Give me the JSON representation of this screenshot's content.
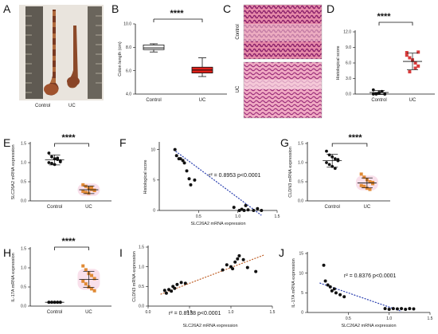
{
  "figure": {
    "panels": {
      "A": {
        "letter": "A",
        "labels": [
          "Control",
          "UC"
        ]
      },
      "B": {
        "letter": "B",
        "significance": "****",
        "chart_data": {
          "type": "box",
          "categories": [
            "Control",
            "UC"
          ],
          "ylabel": "Colon length (cm)",
          "yticks": [
            "4.0",
            "6.0",
            "8.0",
            "10.0"
          ],
          "ylim": [
            4,
            10
          ],
          "boxes": [
            {
              "name": "Control",
              "min": 7.6,
              "q1": 7.8,
              "median": 7.95,
              "q3": 8.2,
              "max": 8.3,
              "color": "#ffffff"
            },
            {
              "name": "UC",
              "min": 5.5,
              "q1": 5.8,
              "median": 6.05,
              "q3": 6.3,
              "max": 7.1,
              "color": "#e0201a"
            }
          ]
        }
      },
      "C": {
        "letter": "C",
        "row_labels": [
          "Control",
          "UC"
        ]
      },
      "D": {
        "letter": "D",
        "significance": "****",
        "chart_data": {
          "type": "dot",
          "categories": [
            "Control",
            "UC"
          ],
          "ylabel": "Histological score",
          "yticks": [
            "0.0",
            "3.0",
            "6.0",
            "9.0",
            "12.0"
          ],
          "ylim": [
            0,
            12
          ],
          "groups": [
            {
              "name": "Control",
              "color": "#111111",
              "mean": 0.3,
              "sd": 0.4,
              "values": [
                0.0,
                0.0,
                0.2,
                0.5,
                0.0,
                0.8,
                0.1,
                0.3,
                0.5,
                0.0
              ]
            },
            {
              "name": "UC",
              "color": "#d83c3c",
              "mean": 6.3,
              "sd": 1.6,
              "values": [
                8.0,
                7.0,
                6.6,
                6.0,
                5.4,
                7.5,
                4.3,
                6.5,
                5.0,
                8.1
              ]
            }
          ]
        }
      },
      "E": {
        "letter": "E",
        "significance": "****",
        "chart_data": {
          "type": "dot",
          "categories": [
            "Control",
            "UC"
          ],
          "ylabel": "SLC26A2 mRNA expression",
          "yticks": [
            "0.0",
            "0.5",
            "1.0",
            "1.5"
          ],
          "ylim": [
            0,
            1.5
          ],
          "groups": [
            {
              "name": "Control",
              "color": "#111111",
              "mean": 1.07,
              "sd": 0.13,
              "values": [
                1.25,
                1.15,
                1.1,
                1.08,
                1.05,
                1.0,
                0.98,
                0.95,
                1.12,
                1.02
              ]
            },
            {
              "name": "UC",
              "color": "#e08a35",
              "mean": 0.29,
              "sd": 0.1,
              "values": [
                0.42,
                0.38,
                0.33,
                0.3,
                0.28,
                0.25,
                0.22,
                0.2,
                0.35,
                0.27
              ]
            }
          ]
        }
      },
      "F": {
        "letter": "F",
        "annotation": "r² = 0.8953  p<0.0001",
        "chart_data": {
          "type": "scatter",
          "xlabel": "SLC26A2 mRNA expression",
          "ylabel": "Histological score",
          "xticks": [
            "0.5",
            "1.0",
            "1.5"
          ],
          "yticks": [
            "0",
            "5",
            "10"
          ],
          "xlim": [
            0,
            1.5
          ],
          "ylim": [
            0,
            11
          ],
          "point_color": "#111111",
          "fit_color": "#2a3fb0",
          "points": [
            [
              0.2,
              10.0
            ],
            [
              0.22,
              9.0
            ],
            [
              0.25,
              8.5
            ],
            [
              0.27,
              8.5
            ],
            [
              0.3,
              8.2
            ],
            [
              0.32,
              7.8
            ],
            [
              0.35,
              6.5
            ],
            [
              0.38,
              5.2
            ],
            [
              0.4,
              4.2
            ],
            [
              0.45,
              5.0
            ],
            [
              0.95,
              0.5
            ],
            [
              1.02,
              0.0
            ],
            [
              1.05,
              0.2
            ],
            [
              1.08,
              0.0
            ],
            [
              1.1,
              0.8
            ],
            [
              1.13,
              0.1
            ],
            [
              1.2,
              0.0
            ],
            [
              1.25,
              0.3
            ],
            [
              1.3,
              0.0
            ]
          ],
          "fit": [
            [
              0.18,
              10.0
            ],
            [
              1.3,
              -0.8
            ]
          ]
        }
      },
      "G": {
        "letter": "G",
        "significance": "****",
        "chart_data": {
          "type": "dot",
          "categories": [
            "Control",
            "UC"
          ],
          "ylabel": "CLDN3 mRNA expression",
          "yticks": [
            "0.0",
            "0.5",
            "1.0",
            "1.5"
          ],
          "ylim": [
            0,
            1.5
          ],
          "groups": [
            {
              "name": "Control",
              "color": "#111111",
              "mean": 1.05,
              "sd": 0.17,
              "values": [
                1.3,
                1.2,
                1.15,
                1.1,
                1.05,
                1.0,
                0.95,
                0.9,
                0.85,
                1.08
              ]
            },
            {
              "name": "UC",
              "color": "#e08a35",
              "mean": 0.47,
              "sd": 0.13,
              "values": [
                0.7,
                0.62,
                0.55,
                0.5,
                0.45,
                0.4,
                0.38,
                0.33,
                0.3,
                0.48
              ]
            }
          ]
        }
      },
      "H": {
        "letter": "H",
        "significance": "****",
        "chart_data": {
          "type": "dot",
          "categories": [
            "Control",
            "UC"
          ],
          "ylabel": "IL-17A mRNA expression",
          "yticks": [
            "0.0",
            "0.5",
            "1.0",
            "1.5"
          ],
          "ylim": [
            0,
            1.5
          ],
          "groups": [
            {
              "name": "Control",
              "color": "#111111",
              "mean": 0.1,
              "sd": 0.01,
              "values": [
                0.1,
                0.1,
                0.1,
                0.1,
                0.1,
                0.1,
                0.1,
                0.1,
                0.1,
                0.1
              ]
            },
            {
              "name": "UC",
              "color": "#e08a35",
              "mean": 0.7,
              "sd": 0.21,
              "values": [
                1.05,
                0.95,
                0.85,
                0.8,
                0.72,
                0.65,
                0.58,
                0.5,
                0.45,
                0.4
              ]
            }
          ]
        }
      },
      "I": {
        "letter": "I",
        "annotation": "r² = 0.8138  p<0.0001",
        "chart_data": {
          "type": "scatter",
          "xlabel": "SLC26A2 mRNA expression",
          "ylabel": "CLDN3 mRNA expression",
          "xticks": [
            "0.0",
            "0.5",
            "1.0",
            "1.5"
          ],
          "yticks": [
            "0.0",
            "0.5",
            "1.0",
            "1.5"
          ],
          "xlim": [
            0,
            1.5
          ],
          "ylim": [
            0,
            1.5
          ],
          "point_color": "#111111",
          "fit_color": "#c0622a",
          "points": [
            [
              0.2,
              0.4
            ],
            [
              0.22,
              0.33
            ],
            [
              0.25,
              0.42
            ],
            [
              0.28,
              0.38
            ],
            [
              0.3,
              0.5
            ],
            [
              0.32,
              0.45
            ],
            [
              0.35,
              0.55
            ],
            [
              0.4,
              0.6
            ],
            [
              0.45,
              0.58
            ],
            [
              0.9,
              0.92
            ],
            [
              0.95,
              1.05
            ],
            [
              1.0,
              1.0
            ],
            [
              1.02,
              0.95
            ],
            [
              1.05,
              1.12
            ],
            [
              1.08,
              1.2
            ],
            [
              1.1,
              1.28
            ],
            [
              1.15,
              1.18
            ],
            [
              1.2,
              0.98
            ],
            [
              1.3,
              0.88
            ]
          ],
          "fit": [
            [
              0.15,
              0.3
            ],
            [
              1.4,
              1.3
            ]
          ]
        }
      },
      "J": {
        "letter": "J",
        "annotation": "r² = 0.8376  p<0.0001",
        "chart_data": {
          "type": "scatter",
          "xlabel": "SLC26A2 mRNA expression",
          "ylabel": "IL-17A mRNA expression",
          "xticks": [
            "0.5",
            "1.0",
            "1.5"
          ],
          "yticks": [
            "0",
            "5",
            "10",
            "15"
          ],
          "xlim": [
            0,
            1.5
          ],
          "ylim": [
            0,
            15
          ],
          "point_color": "#111111",
          "fit_color": "#2a3fb0",
          "points": [
            [
              0.2,
              12.0
            ],
            [
              0.22,
              8.0
            ],
            [
              0.25,
              7.0
            ],
            [
              0.28,
              6.5
            ],
            [
              0.3,
              5.5
            ],
            [
              0.33,
              6.0
            ],
            [
              0.35,
              5.0
            ],
            [
              0.4,
              4.5
            ],
            [
              0.45,
              4.0
            ],
            [
              0.95,
              1.0
            ],
            [
              1.0,
              0.8
            ],
            [
              1.05,
              1.0
            ],
            [
              1.1,
              0.9
            ],
            [
              1.15,
              1.0
            ],
            [
              1.2,
              0.8
            ],
            [
              1.25,
              1.0
            ],
            [
              1.3,
              0.9
            ]
          ],
          "fit": [
            [
              0.15,
              7.5
            ],
            [
              1.15,
              0.3
            ]
          ]
        }
      }
    }
  }
}
